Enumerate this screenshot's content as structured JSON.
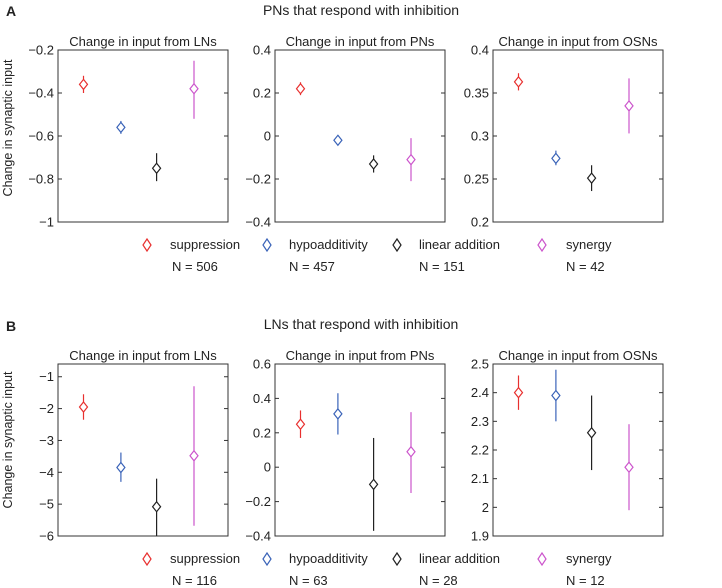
{
  "colors": {
    "suppression": "#e8302f",
    "hypoadditivity": "#3a63b8",
    "linear_addition": "#222222",
    "synergy": "#cc55cc"
  },
  "legend_items": [
    "suppression",
    "hypoadditivity",
    "linear addition",
    "synergy"
  ],
  "chart_data": [
    {
      "panel": "A",
      "title": "PNs that respond with inhibition",
      "ylabel": "Change in synaptic input",
      "n_labels": [
        "N = 506",
        "N = 457",
        "N = 151",
        "N = 42"
      ],
      "subplots": [
        {
          "type": "scatter",
          "title": "Change in input from LNs",
          "ylim": [
            -1,
            -0.2
          ],
          "yticks": [
            -1,
            -0.8,
            -0.6,
            -0.4,
            -0.2
          ],
          "ytick_labels": [
            "−1",
            "−0.8",
            "−0.6",
            "−0.4",
            "−0.2"
          ],
          "series": [
            {
              "name": "suppression",
              "mean": -0.36,
              "lo": -0.4,
              "hi": -0.32
            },
            {
              "name": "hypoadditivity",
              "mean": -0.56,
              "lo": -0.59,
              "hi": -0.53
            },
            {
              "name": "linear addition",
              "mean": -0.75,
              "lo": -0.81,
              "hi": -0.68
            },
            {
              "name": "synergy",
              "mean": -0.38,
              "lo": -0.52,
              "hi": -0.25
            }
          ]
        },
        {
          "type": "scatter",
          "title": "Change in input from PNs",
          "ylim": [
            -0.4,
            0.4
          ],
          "yticks": [
            -0.4,
            -0.2,
            0,
            0.2,
            0.4
          ],
          "ytick_labels": [
            "−0.4",
            "−0.2",
            "0",
            "0.2",
            "0.4"
          ],
          "series": [
            {
              "name": "suppression",
              "mean": 0.22,
              "lo": 0.19,
              "hi": 0.25
            },
            {
              "name": "hypoadditivity",
              "mean": -0.02,
              "lo": -0.04,
              "hi": 0.0
            },
            {
              "name": "linear addition",
              "mean": -0.13,
              "lo": -0.17,
              "hi": -0.09
            },
            {
              "name": "synergy",
              "mean": -0.11,
              "lo": -0.21,
              "hi": -0.01
            }
          ]
        },
        {
          "type": "scatter",
          "title": "Change in input from OSNs",
          "ylim": [
            0.2,
            0.4
          ],
          "yticks": [
            0.2,
            0.25,
            0.3,
            0.35,
            0.4
          ],
          "ytick_labels": [
            "0.2",
            "0.25",
            "0.3",
            "0.35",
            "0.4"
          ],
          "series": [
            {
              "name": "suppression",
              "mean": 0.363,
              "lo": 0.353,
              "hi": 0.373
            },
            {
              "name": "hypoadditivity",
              "mean": 0.274,
              "lo": 0.266,
              "hi": 0.283
            },
            {
              "name": "linear addition",
              "mean": 0.251,
              "lo": 0.236,
              "hi": 0.266
            },
            {
              "name": "synergy",
              "mean": 0.335,
              "lo": 0.303,
              "hi": 0.367
            }
          ]
        }
      ]
    },
    {
      "panel": "B",
      "title": "LNs that respond with inhibition",
      "ylabel": "Change in synaptic input",
      "n_labels": [
        "N = 116",
        "N = 63",
        "N = 28",
        "N = 12"
      ],
      "subplots": [
        {
          "type": "scatter",
          "title": "Change in input from LNs",
          "ylim": [
            -6,
            -0.6
          ],
          "yticks": [
            -6,
            -5,
            -4,
            -3,
            -2,
            -1
          ],
          "ytick_labels": [
            "−6",
            "−5",
            "−4",
            "−3",
            "−2",
            "−1"
          ],
          "series": [
            {
              "name": "suppression",
              "mean": -1.95,
              "lo": -2.35,
              "hi": -1.55
            },
            {
              "name": "hypoadditivity",
              "mean": -3.85,
              "lo": -4.3,
              "hi": -3.38
            },
            {
              "name": "linear addition",
              "mean": -5.08,
              "lo": -6.0,
              "hi": -4.2
            },
            {
              "name": "synergy",
              "mean": -3.48,
              "lo": -5.68,
              "hi": -1.3
            }
          ]
        },
        {
          "type": "scatter",
          "title": "Change in input from PNs",
          "ylim": [
            -0.4,
            0.6
          ],
          "yticks": [
            -0.4,
            -0.2,
            0,
            0.2,
            0.4,
            0.6
          ],
          "ytick_labels": [
            "−0.4",
            "−0.2",
            "0",
            "0.2",
            "0.4",
            "0.6"
          ],
          "series": [
            {
              "name": "suppression",
              "mean": 0.25,
              "lo": 0.17,
              "hi": 0.33
            },
            {
              "name": "hypoadditivity",
              "mean": 0.31,
              "lo": 0.19,
              "hi": 0.43
            },
            {
              "name": "linear addition",
              "mean": -0.1,
              "lo": -0.37,
              "hi": 0.17
            },
            {
              "name": "synergy",
              "mean": 0.09,
              "lo": -0.15,
              "hi": 0.32
            }
          ]
        },
        {
          "type": "scatter",
          "title": "Change in input from OSNs",
          "ylim": [
            1.9,
            2.5
          ],
          "yticks": [
            1.9,
            2.0,
            2.1,
            2.2,
            2.3,
            2.4,
            2.5
          ],
          "ytick_labels": [
            "1.9",
            "2",
            "2.1",
            "2.2",
            "2.3",
            "2.4",
            "2.5"
          ],
          "series": [
            {
              "name": "suppression",
              "mean": 2.4,
              "lo": 2.34,
              "hi": 2.46
            },
            {
              "name": "hypoadditivity",
              "mean": 2.39,
              "lo": 2.3,
              "hi": 2.48
            },
            {
              "name": "linear addition",
              "mean": 2.26,
              "lo": 2.13,
              "hi": 2.39
            },
            {
              "name": "synergy",
              "mean": 2.14,
              "lo": 1.99,
              "hi": 2.29
            }
          ]
        }
      ]
    }
  ]
}
